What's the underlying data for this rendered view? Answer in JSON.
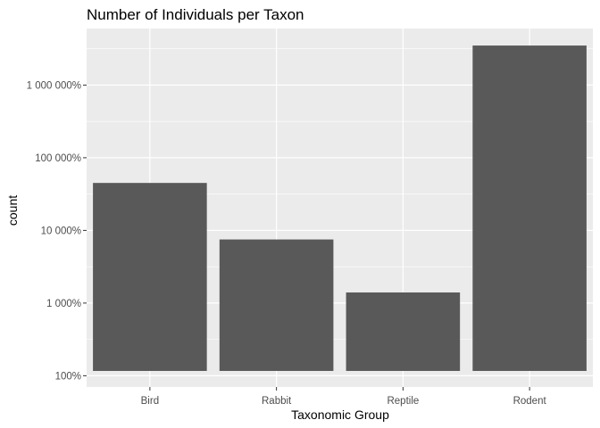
{
  "chart_data": {
    "type": "bar",
    "title": "Number of Individuals per Taxon",
    "xlabel": "Taxonomic Group",
    "ylabel": "count",
    "y_scale": "log10",
    "ylim": [
      70,
      6000000
    ],
    "yticks": [
      100,
      1000,
      10000,
      100000,
      1000000
    ],
    "ytick_labels": [
      "100%",
      "1 000%",
      "10 000%",
      "100 000%",
      "1 000 000%"
    ],
    "categories": [
      "Bird",
      "Rabbit",
      "Reptile",
      "Rodent"
    ],
    "values": [
      45000,
      7500,
      1400,
      3500000
    ],
    "grid": true,
    "legend": "none",
    "colors": {
      "panel_background": "#ebebeb",
      "grid_major": "#ffffff",
      "bar_fill": "#595959",
      "tick_text": "#4d4d4d"
    }
  }
}
